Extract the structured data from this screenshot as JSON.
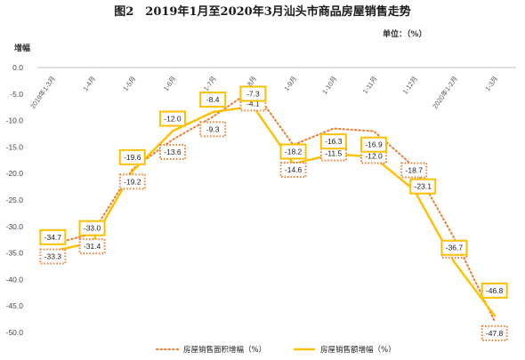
{
  "chart_data": {
    "type": "line",
    "title": "图2　2019年1月至2020年3月汕头市商品房屋销售走势",
    "unit_label": "单位：（%）",
    "ylabel": "增幅",
    "ylim": [
      -50,
      0
    ],
    "yticks": [
      "0.0",
      "-5.0",
      "-10.0",
      "-15.0",
      "-20.0",
      "-25.0",
      "-30.0",
      "-35.0",
      "-40.0",
      "-45.0",
      "-50.0"
    ],
    "categories": [
      "2019年1-3月",
      "1-4月",
      "1-5月",
      "1-6月",
      "1-7月",
      "1-8月",
      "1-9月",
      "1-10月",
      "1-11月",
      "1-12月",
      "2020年1-2月",
      "1-3月"
    ],
    "legend_position": "bottom",
    "series": [
      {
        "name": "房屋销售面积增幅（%）",
        "style": "dotted",
        "color": "#ED7D31",
        "values": [
          -33.3,
          -31.4,
          -19.2,
          -13.6,
          -9.3,
          -4.1,
          -14.6,
          -11.5,
          -12.0,
          -18.7,
          -32.2,
          -47.8
        ]
      },
      {
        "name": "房屋销售额增幅（%）",
        "style": "solid",
        "color": "#FFC000",
        "values": [
          -34.7,
          -33.0,
          -19.6,
          -12.0,
          -8.4,
          -7.3,
          -18.2,
          -16.3,
          -16.9,
          -23.1,
          -36.7,
          -46.8
        ]
      }
    ]
  }
}
